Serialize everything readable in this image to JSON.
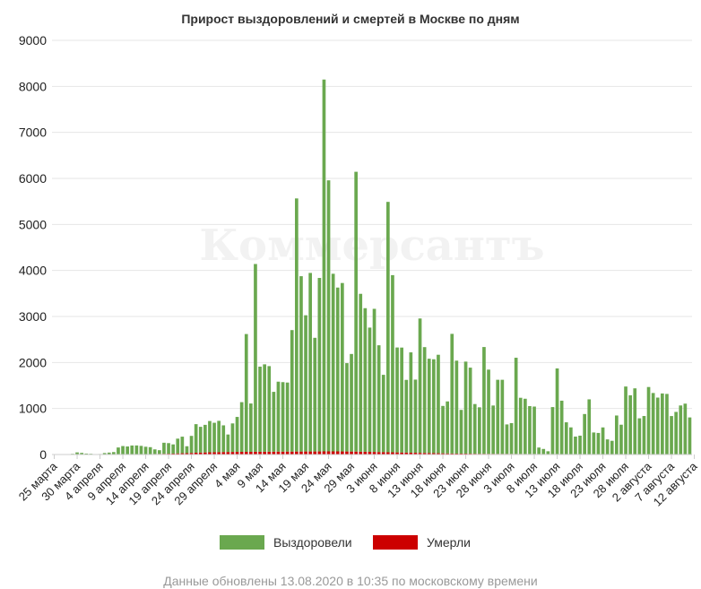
{
  "watermark": "Коммерсантъ",
  "footnote": "Данные обновлены 13.08.2020 в 10:35 по московскому времени",
  "colors": {
    "recovered": "#6aa84f",
    "deaths": "#cc0000",
    "grid": "#e6e6e6"
  },
  "chart_data": {
    "type": "bar",
    "stacked": true,
    "title": "Прирост выздоровлений и смертей в Москве по дням",
    "xlabel": "",
    "ylabel": "",
    "ylim": [
      0,
      9000
    ],
    "yticks": [
      0,
      1000,
      2000,
      3000,
      4000,
      5000,
      6000,
      7000,
      8000,
      9000
    ],
    "grid": true,
    "legend_position": "bottom",
    "x_start": "25 марта",
    "x_end": "13 августа",
    "x_tick_labels": [
      "25 марта",
      "30 марта",
      "4 апреля",
      "9 апреля",
      "14 апреля",
      "19 апреля",
      "24 апреля",
      "29 апреля",
      "4 мая",
      "9 мая",
      "14 мая",
      "19 мая",
      "24 мая",
      "29 мая",
      "3 июня",
      "8 июня",
      "13 июня",
      "18 июня",
      "23 июня",
      "28 июня",
      "3 июля",
      "8 июля",
      "13 июля",
      "18 июля",
      "23 июля",
      "28 июля",
      "2 августа",
      "7 августа",
      "12 августа"
    ],
    "series": [
      {
        "name": "Выздоровели",
        "color": "#6aa84f",
        "values": [
          5,
          3,
          5,
          8,
          15,
          45,
          35,
          20,
          15,
          5,
          10,
          30,
          40,
          50,
          150,
          180,
          170,
          190,
          190,
          180,
          160,
          150,
          100,
          80,
          240,
          230,
          200,
          320,
          360,
          150,
          370,
          620,
          560,
          600,
          680,
          640,
          680,
          580,
          380,
          620,
          760,
          1080,
          2560,
          1050,
          4080,
          1850,
          1900,
          1860,
          1300,
          1520,
          1510,
          1500,
          2640,
          5500,
          3810,
          2960,
          3880,
          2470,
          3770,
          8080,
          5890,
          3860,
          3560,
          3660,
          1920,
          2120,
          6080,
          3430,
          3120,
          2700,
          3110,
          2320,
          1680,
          5440,
          3850,
          2280,
          2280,
          1580,
          2180,
          1590,
          2920,
          2300,
          2050,
          2040,
          2140,
          1030,
          1130,
          2600,
          2020,
          950,
          2000,
          1870,
          1080,
          1010,
          2320,
          1830,
          1050,
          1610,
          1610,
          640,
          670,
          2090,
          1220,
          1200,
          1040,
          1030,
          140,
          110,
          60,
          1020,
          1860,
          1160,
          690,
          580,
          380,
          400,
          870,
          1190,
          470,
          460,
          580,
          320,
          290,
          840,
          640,
          1470,
          1280,
          1430,
          780,
          830,
          1460,
          1330,
          1230,
          1320,
          1310,
          830,
          920,
          1060,
          1100,
          800
        ]
      },
      {
        "name": "Умерли",
        "color": "#cc0000",
        "values": [
          0,
          0,
          0,
          0,
          0,
          1,
          1,
          1,
          1,
          1,
          1,
          2,
          2,
          3,
          3,
          4,
          5,
          6,
          7,
          8,
          9,
          10,
          12,
          14,
          16,
          18,
          20,
          25,
          28,
          30,
          35,
          40,
          42,
          45,
          48,
          50,
          52,
          54,
          55,
          56,
          57,
          58,
          58,
          59,
          60,
          60,
          60,
          61,
          62,
          63,
          63,
          64,
          64,
          65,
          65,
          66,
          66,
          66,
          67,
          68,
          68,
          68,
          68,
          67,
          66,
          65,
          64,
          62,
          60,
          58,
          56,
          54,
          52,
          50,
          48,
          46,
          44,
          42,
          40,
          38,
          36,
          34,
          32,
          30,
          28,
          26,
          24,
          22,
          20,
          20,
          19,
          18,
          17,
          16,
          16,
          15,
          15,
          14,
          14,
          14,
          13,
          13,
          13,
          12,
          12,
          12,
          12,
          11,
          11,
          11,
          11,
          10,
          10,
          10,
          10,
          10,
          10,
          9,
          9,
          9,
          9,
          9,
          8,
          8,
          8,
          8,
          8,
          8,
          7,
          7,
          7,
          7,
          7,
          7,
          7,
          6,
          6,
          6,
          6,
          6,
          6,
          6,
          6
        ]
      }
    ]
  }
}
